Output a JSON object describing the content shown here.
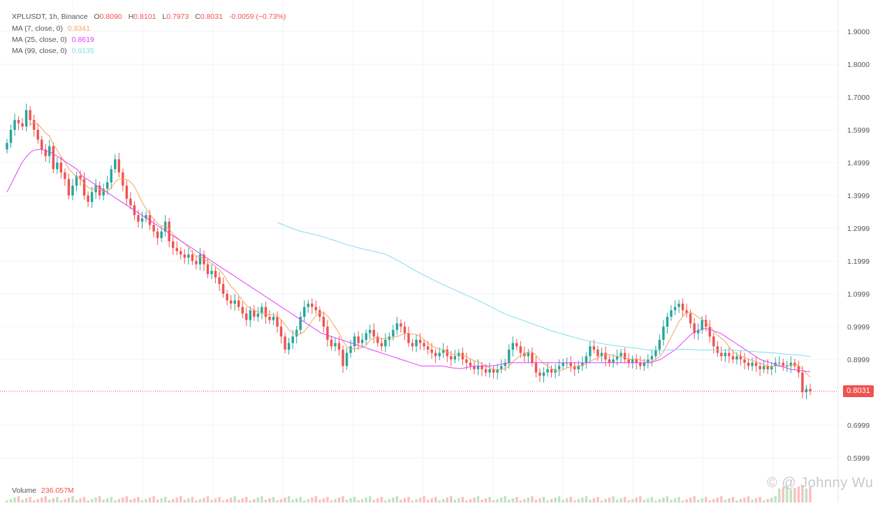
{
  "header": {
    "symbol_line": "XPLUSDT, 1h, Binance",
    "open_label": "O",
    "open_value": "0.8090",
    "high_label": "H",
    "high_value": "0.8101",
    "low_label": "L",
    "low_value": "0.7973",
    "close_label": "C",
    "close_value": "0.8031",
    "change": "-0.0059 (−0.73%)"
  },
  "indicators": {
    "ma7": {
      "label": "MA (7, close, 0)",
      "value": "0.8341",
      "color": "#f5a35c"
    },
    "ma25": {
      "label": "MA (25, close, 0)",
      "value": "0.8619",
      "color": "#e040fb"
    },
    "ma99": {
      "label": "MA (99, close, 0)",
      "value": "0.9135",
      "color": "#80deea"
    }
  },
  "volume": {
    "label": "Volume",
    "value": "236.057M"
  },
  "last_price_tag": "0.8031",
  "watermark": "© @ Johnny Wu",
  "colors": {
    "up": "#26a69a",
    "down": "#ef5350",
    "grid": "#f0f3fa",
    "text": "#545454"
  },
  "chart_data": {
    "type": "candlestick",
    "title": "XPLUSDT, 1h, Binance",
    "y_tick_labels": [
      "1.9000",
      "1.8000",
      "1.7000",
      "1.5999",
      "1.4999",
      "1.3999",
      "1.2999",
      "1.1999",
      "1.0999",
      "0.9999",
      "0.8999",
      "0.6999",
      "0.5999"
    ],
    "y_ticks": [
      1.9,
      1.8,
      1.7,
      1.6,
      1.5,
      1.4,
      1.3,
      1.2,
      1.1,
      1.0,
      0.9,
      0.7,
      0.6
    ],
    "ylim": [
      0.565,
      1.98
    ],
    "grid": true,
    "last_close": 0.8031,
    "close": [
      1.56,
      1.6,
      1.63,
      1.62,
      1.61,
      1.66,
      1.63,
      1.6,
      1.57,
      1.54,
      1.52,
      1.55,
      1.48,
      1.5,
      1.47,
      1.45,
      1.4,
      1.43,
      1.46,
      1.45,
      1.4,
      1.38,
      1.41,
      1.43,
      1.4,
      1.42,
      1.44,
      1.48,
      1.51,
      1.47,
      1.43,
      1.39,
      1.37,
      1.34,
      1.32,
      1.33,
      1.34,
      1.31,
      1.29,
      1.27,
      1.29,
      1.32,
      1.26,
      1.24,
      1.23,
      1.22,
      1.21,
      1.22,
      1.2,
      1.19,
      1.22,
      1.19,
      1.16,
      1.17,
      1.15,
      1.13,
      1.1,
      1.08,
      1.07,
      1.08,
      1.06,
      1.04,
      1.02,
      1.05,
      1.03,
      1.04,
      1.06,
      1.03,
      1.02,
      1.03,
      1.0,
      0.97,
      0.93,
      0.95,
      0.97,
      0.99,
      1.03,
      1.06,
      1.07,
      1.06,
      1.05,
      1.03,
      1.0,
      0.96,
      0.94,
      0.95,
      0.93,
      0.88,
      0.92,
      0.94,
      0.97,
      0.95,
      0.96,
      0.98,
      0.99,
      0.97,
      0.95,
      0.94,
      0.96,
      0.97,
      0.99,
      1.01,
      1.0,
      0.98,
      0.95,
      0.94,
      0.96,
      0.95,
      0.94,
      0.93,
      0.92,
      0.91,
      0.92,
      0.93,
      0.91,
      0.9,
      0.91,
      0.92,
      0.9,
      0.89,
      0.88,
      0.87,
      0.88,
      0.87,
      0.86,
      0.87,
      0.86,
      0.87,
      0.88,
      0.89,
      0.93,
      0.95,
      0.94,
      0.92,
      0.91,
      0.92,
      0.89,
      0.86,
      0.85,
      0.86,
      0.87,
      0.86,
      0.87,
      0.88,
      0.89,
      0.89,
      0.88,
      0.87,
      0.88,
      0.89,
      0.91,
      0.94,
      0.93,
      0.91,
      0.92,
      0.9,
      0.89,
      0.9,
      0.91,
      0.92,
      0.9,
      0.89,
      0.9,
      0.89,
      0.88,
      0.89,
      0.9,
      0.91,
      0.93,
      0.96,
      1.0,
      1.03,
      1.05,
      1.06,
      1.07,
      1.05,
      1.04,
      1.01,
      0.98,
      0.99,
      1.02,
      1.0,
      0.97,
      0.94,
      0.92,
      0.91,
      0.92,
      0.91,
      0.9,
      0.91,
      0.9,
      0.89,
      0.88,
      0.89,
      0.88,
      0.87,
      0.88,
      0.87,
      0.88,
      0.89,
      0.89,
      0.88,
      0.88,
      0.89,
      0.88,
      0.86,
      0.8,
      0.81,
      0.803
    ],
    "ma25": [
      1.41,
      1.44,
      1.47,
      1.5,
      1.52,
      1.535,
      1.54,
      1.54,
      1.535,
      1.53,
      1.52,
      1.51,
      1.5,
      1.49,
      1.48,
      1.46,
      1.45,
      1.44,
      1.43,
      1.42,
      1.41,
      1.4,
      1.39,
      1.38,
      1.37,
      1.36,
      1.35,
      1.34,
      1.33,
      1.32,
      1.31,
      1.3,
      1.29,
      1.28,
      1.27,
      1.26,
      1.25,
      1.24,
      1.23,
      1.22,
      1.21,
      1.2,
      1.19,
      1.18,
      1.17,
      1.16,
      1.15,
      1.14,
      1.13,
      1.12,
      1.11,
      1.1,
      1.09,
      1.08,
      1.07,
      1.06,
      1.05,
      1.04,
      1.03,
      1.02,
      1.01,
      1.0,
      0.99,
      0.98,
      0.975,
      0.97,
      0.965,
      0.96,
      0.955,
      0.95,
      0.945,
      0.94,
      0.935,
      0.93,
      0.925,
      0.92,
      0.915,
      0.91,
      0.905,
      0.9,
      0.895,
      0.89,
      0.885,
      0.88,
      0.88,
      0.88,
      0.88,
      0.88,
      0.878,
      0.875,
      0.873,
      0.872,
      0.875,
      0.878,
      0.88,
      0.88,
      0.88,
      0.88,
      0.882,
      0.885,
      0.888,
      0.89,
      0.89,
      0.89,
      0.89,
      0.89,
      0.89,
      0.89,
      0.89,
      0.89,
      0.89,
      0.89,
      0.89,
      0.89,
      0.89,
      0.89,
      0.89,
      0.89,
      0.89,
      0.89,
      0.89,
      0.89,
      0.89,
      0.89,
      0.89,
      0.89,
      0.89,
      0.89,
      0.89,
      0.89,
      0.895,
      0.9,
      0.91,
      0.92,
      0.93,
      0.945,
      0.96,
      0.975,
      0.985,
      0.99,
      0.995,
      0.99,
      0.985,
      0.98,
      0.97,
      0.96,
      0.95,
      0.94,
      0.93,
      0.92,
      0.91,
      0.9,
      0.895,
      0.89,
      0.885,
      0.88,
      0.875,
      0.87,
      0.868,
      0.866,
      0.864,
      0.862
    ],
    "ma99_note": "MA99 line drawn from later segment only"
  }
}
